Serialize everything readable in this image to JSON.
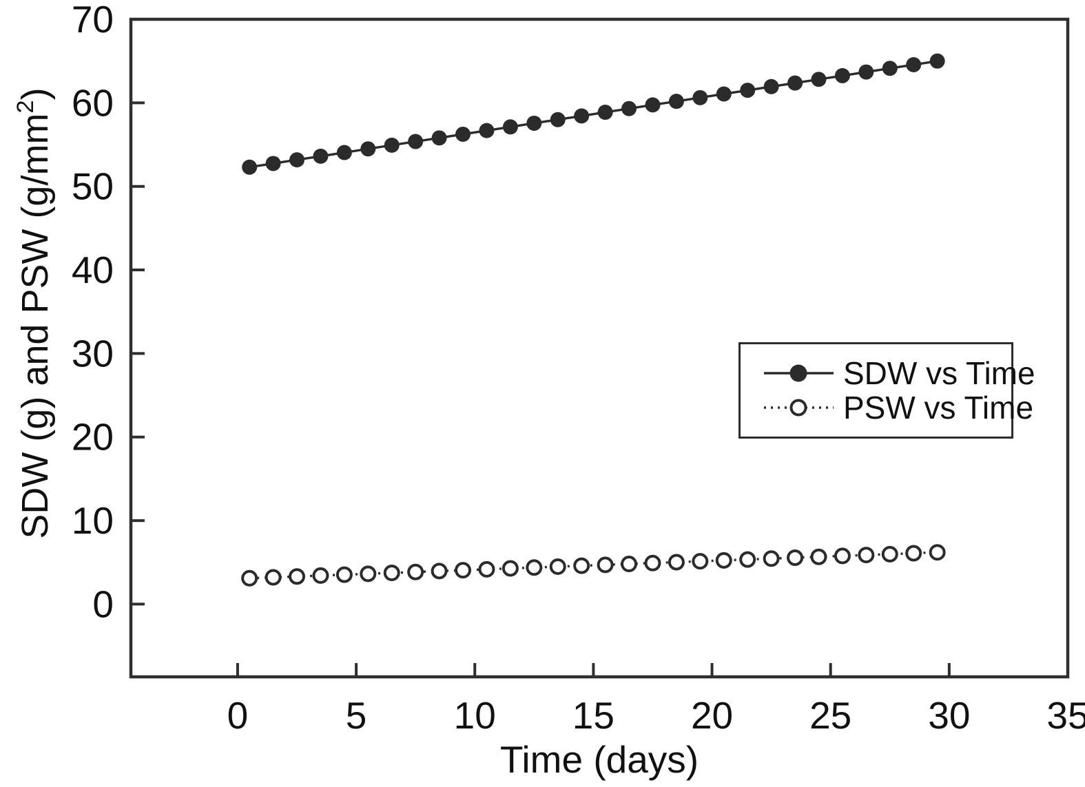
{
  "figure": {
    "background": "#ffffff",
    "ink_color": "#2b2b2b",
    "axis_color": "#2f2f2f",
    "text_color": "#111111"
  },
  "chart_data": {
    "type": "scatter",
    "title": "",
    "xlabel": "Time (days)",
    "ylabel_prefix": "SDW (g) and PSW (g/mm",
    "ylabel_sup": "2",
    "ylabel_suffix": ")",
    "xlim": [
      -4.5,
      35
    ],
    "ylim": [
      -8.7,
      70
    ],
    "x_ticks": [
      0,
      5,
      10,
      15,
      20,
      25,
      30,
      35
    ],
    "y_ticks": [
      0,
      10,
      20,
      30,
      40,
      50,
      60,
      70
    ],
    "grid": false,
    "legend_position": "middle-right",
    "x": [
      0.5,
      1.5,
      2.5,
      3.5,
      4.5,
      5.5,
      6.5,
      7.5,
      8.5,
      9.5,
      10.5,
      11.5,
      12.5,
      13.5,
      14.5,
      15.5,
      16.5,
      17.5,
      18.5,
      19.5,
      20.5,
      21.5,
      22.5,
      23.5,
      24.5,
      25.5,
      26.5,
      27.5,
      28.5,
      29.5
    ],
    "series": [
      {
        "name": "SDW vs Time",
        "marker": "filled-circle",
        "line": "solid",
        "values": [
          52.3,
          52.74,
          53.18,
          53.61,
          54.05,
          54.49,
          54.93,
          55.37,
          55.8,
          56.24,
          56.68,
          57.12,
          57.56,
          57.99,
          58.43,
          58.87,
          59.31,
          59.75,
          60.18,
          60.62,
          61.06,
          61.5,
          61.94,
          62.37,
          62.81,
          63.25,
          63.69,
          64.13,
          64.56,
          65.0
        ]
      },
      {
        "name": "PSW vs Time",
        "marker": "open-circle",
        "line": "dotted",
        "values": [
          3.1,
          3.21,
          3.31,
          3.42,
          3.53,
          3.63,
          3.74,
          3.85,
          3.96,
          4.06,
          4.17,
          4.28,
          4.38,
          4.49,
          4.6,
          4.7,
          4.81,
          4.92,
          5.02,
          5.13,
          5.24,
          5.34,
          5.45,
          5.56,
          5.66,
          5.77,
          5.88,
          5.98,
          6.09,
          6.2
        ]
      }
    ]
  }
}
